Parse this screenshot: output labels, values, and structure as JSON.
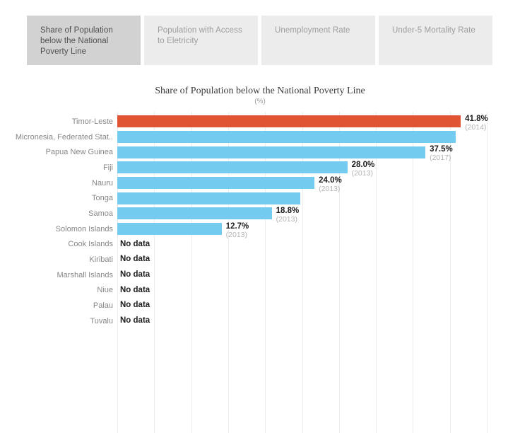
{
  "tabs": [
    {
      "label": "Share of Population below the National Poverty Line",
      "active": true
    },
    {
      "label": "Population with Access to Eletricity",
      "active": false
    },
    {
      "label": "Unemployment Rate",
      "active": false
    },
    {
      "label": "Under-5 Mortality Rate",
      "active": false
    }
  ],
  "chart": {
    "title": "Share of Population below the National Poverty Line",
    "subtitle": "(%)"
  },
  "chart_data": {
    "type": "bar",
    "orientation": "horizontal",
    "title": "Share of Population below the National Poverty Line",
    "unit": "%",
    "xlim": [
      0,
      48.5
    ],
    "grid": true,
    "legend": "none",
    "colors": {
      "highlight": "#e05433",
      "bar": "#73cbf0"
    },
    "rows": [
      {
        "country": "Timor-Leste",
        "value": 41.8,
        "value_label": "41.8%",
        "year_label": "(2014)",
        "highlight": true
      },
      {
        "country": "Micronesia, Federated Stat..",
        "value": 41.2,
        "value_label": "",
        "year_label": "",
        "highlight": false
      },
      {
        "country": "Papua New Guinea",
        "value": 37.5,
        "value_label": "37.5%",
        "year_label": "(2017)",
        "highlight": false
      },
      {
        "country": "Fiji",
        "value": 28.0,
        "value_label": "28.0%",
        "year_label": "(2013)",
        "highlight": false
      },
      {
        "country": "Nauru",
        "value": 24.0,
        "value_label": "24.0%",
        "year_label": "(2013)",
        "highlight": false
      },
      {
        "country": "Tonga",
        "value": 22.3,
        "value_label": "",
        "year_label": "",
        "highlight": false
      },
      {
        "country": "Samoa",
        "value": 18.8,
        "value_label": "18.8%",
        "year_label": "(2013)",
        "highlight": false
      },
      {
        "country": "Solomon Islands",
        "value": 12.7,
        "value_label": "12.7%",
        "year_label": "(2013)",
        "highlight": false
      },
      {
        "country": "Cook Islands",
        "value": null,
        "no_data_label": "No data"
      },
      {
        "country": "Kiribati",
        "value": null,
        "no_data_label": "No data"
      },
      {
        "country": "Marshall Islands",
        "value": null,
        "no_data_label": "No data"
      },
      {
        "country": "Niue",
        "value": null,
        "no_data_label": "No data"
      },
      {
        "country": "Palau",
        "value": null,
        "no_data_label": "No data"
      },
      {
        "country": "Tuvalu",
        "value": null,
        "no_data_label": "No data"
      }
    ]
  }
}
